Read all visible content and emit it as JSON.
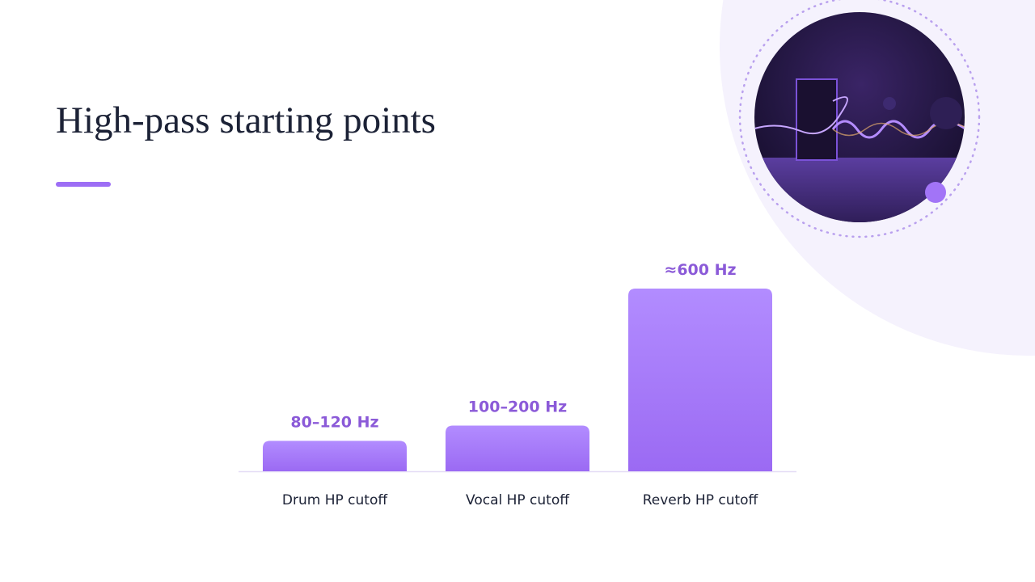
{
  "chart_data": {
    "type": "bar",
    "title": "High-pass starting points",
    "categories": [
      "Drum HP cutoff",
      "Vocal HP cutoff",
      "Reverb HP cutoff"
    ],
    "values": [
      100,
      150,
      600
    ],
    "value_labels": [
      "80–120 Hz",
      "100–200 Hz",
      "≈600 Hz"
    ],
    "color": "#9d6ef5"
  }
}
